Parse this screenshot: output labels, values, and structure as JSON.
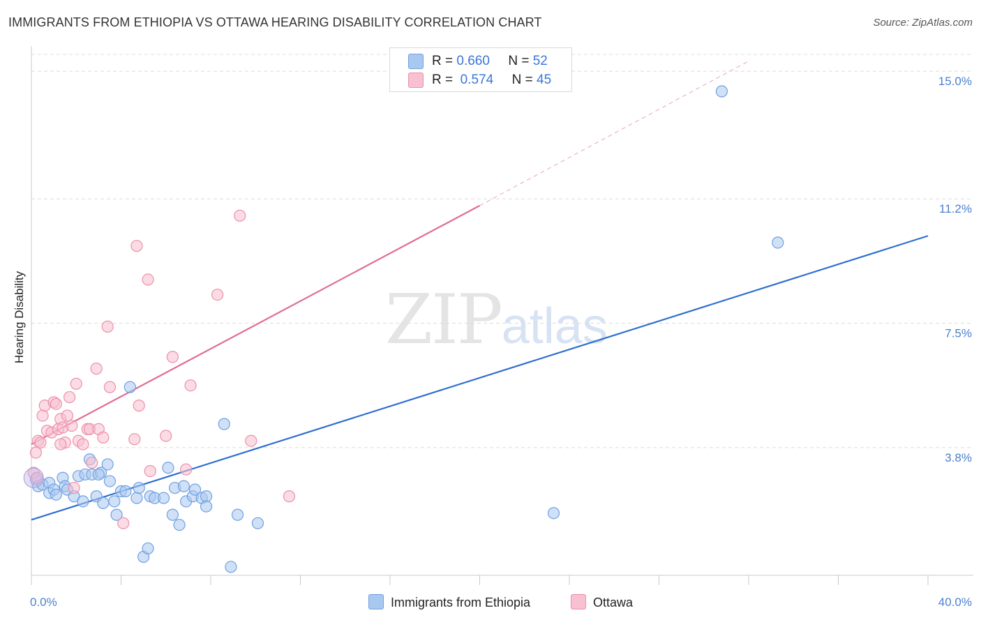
{
  "title": "IMMIGRANTS FROM ETHIOPIA VS OTTAWA HEARING DISABILITY CORRELATION CHART",
  "source": "Source: ZipAtlas.com",
  "watermark": {
    "zip": "ZIP",
    "atlas": "atlas"
  },
  "legend": {
    "rows": [
      {
        "r_label": "R =",
        "r_value": "0.660",
        "n_label": "N =",
        "n_value": "52",
        "color": "#a9c8f0",
        "border": "#6fa0e0"
      },
      {
        "r_label": "R =",
        "r_value": "0.574",
        "n_label": "N =",
        "n_value": "45",
        "color": "#f8c0d0",
        "border": "#ec8fab"
      }
    ]
  },
  "bottom_legend": [
    {
      "label": "Immigrants from Ethiopia",
      "color": "#a9c8f0",
      "border": "#6fa0e0"
    },
    {
      "label": "Ottawa",
      "color": "#f8c0d0",
      "border": "#ec8fab"
    }
  ],
  "chart_data": {
    "type": "scatter",
    "title": "IMMIGRANTS FROM ETHIOPIA VS OTTAWA HEARING DISABILITY CORRELATION CHART",
    "xlabel": "",
    "ylabel": "Hearing Disability",
    "xlim": [
      0,
      40
    ],
    "ylim": [
      0,
      15.5
    ],
    "x_tick_labels": [
      "0.0%",
      "40.0%"
    ],
    "y_ticks": [
      3.8,
      7.5,
      11.2,
      15.0
    ],
    "y_tick_labels": [
      "3.8%",
      "7.5%",
      "11.2%",
      "15.0%"
    ],
    "series": [
      {
        "name": "Immigrants from Ethiopia",
        "color": "#6fa0e0",
        "fill": "#a9c8f0",
        "trend": {
          "x": [
            0,
            40
          ],
          "y": [
            1.65,
            10.1
          ],
          "color": "#2f6fd0"
        },
        "points": [
          [
            0.2,
            2.85
          ],
          [
            0.3,
            2.65
          ],
          [
            0.5,
            2.7
          ],
          [
            0.8,
            2.75
          ],
          [
            0.8,
            2.45
          ],
          [
            1.0,
            2.55
          ],
          [
            1.1,
            2.4
          ],
          [
            1.4,
            2.9
          ],
          [
            1.5,
            2.65
          ],
          [
            1.6,
            2.55
          ],
          [
            1.9,
            2.35
          ],
          [
            2.1,
            2.95
          ],
          [
            2.3,
            2.2
          ],
          [
            2.4,
            3.0
          ],
          [
            2.6,
            3.45
          ],
          [
            2.7,
            3.0
          ],
          [
            2.9,
            2.35
          ],
          [
            3.1,
            3.05
          ],
          [
            3.2,
            2.15
          ],
          [
            3.4,
            3.3
          ],
          [
            3.5,
            2.8
          ],
          [
            3.7,
            2.2
          ],
          [
            3.8,
            1.8
          ],
          [
            4.0,
            2.5
          ],
          [
            4.2,
            2.5
          ],
          [
            4.4,
            5.6
          ],
          [
            4.7,
            2.3
          ],
          [
            4.8,
            2.6
          ],
          [
            5.0,
            0.55
          ],
          [
            5.2,
            0.8
          ],
          [
            5.3,
            2.35
          ],
          [
            5.5,
            2.3
          ],
          [
            5.9,
            2.3
          ],
          [
            6.1,
            3.2
          ],
          [
            6.3,
            1.8
          ],
          [
            6.4,
            2.6
          ],
          [
            6.6,
            1.5
          ],
          [
            6.8,
            2.65
          ],
          [
            6.9,
            2.2
          ],
          [
            7.2,
            2.35
          ],
          [
            7.3,
            2.55
          ],
          [
            7.6,
            2.3
          ],
          [
            7.8,
            2.35
          ],
          [
            7.8,
            2.05
          ],
          [
            8.6,
            4.5
          ],
          [
            8.9,
            0.25
          ],
          [
            9.2,
            1.8
          ],
          [
            10.1,
            1.55
          ],
          [
            23.3,
            1.85
          ],
          [
            30.8,
            14.4
          ],
          [
            33.3,
            9.9
          ],
          [
            3.0,
            3.0
          ]
        ]
      },
      {
        "name": "Ottawa",
        "color": "#ec8fab",
        "fill": "#f8c0d0",
        "trend": {
          "x": [
            0,
            20
          ],
          "y": [
            3.9,
            11.0
          ],
          "color": "#e06c94",
          "dashed_to": [
            32,
            15.3
          ]
        },
        "points": [
          [
            0.2,
            3.65
          ],
          [
            0.3,
            4.0
          ],
          [
            0.4,
            3.95
          ],
          [
            0.5,
            4.75
          ],
          [
            0.6,
            5.05
          ],
          [
            0.7,
            4.3
          ],
          [
            0.9,
            4.25
          ],
          [
            1.0,
            5.15
          ],
          [
            1.1,
            5.1
          ],
          [
            1.2,
            4.35
          ],
          [
            1.3,
            4.65
          ],
          [
            1.4,
            4.4
          ],
          [
            1.5,
            3.95
          ],
          [
            1.6,
            4.75
          ],
          [
            1.7,
            5.3
          ],
          [
            1.8,
            4.45
          ],
          [
            1.9,
            2.6
          ],
          [
            2.0,
            5.7
          ],
          [
            2.1,
            4.0
          ],
          [
            2.3,
            3.9
          ],
          [
            2.5,
            4.35
          ],
          [
            2.6,
            4.35
          ],
          [
            2.7,
            3.35
          ],
          [
            2.9,
            6.15
          ],
          [
            3.0,
            4.35
          ],
          [
            3.2,
            4.1
          ],
          [
            3.4,
            7.4
          ],
          [
            3.5,
            5.6
          ],
          [
            4.1,
            1.55
          ],
          [
            4.6,
            4.05
          ],
          [
            4.7,
            9.8
          ],
          [
            4.8,
            5.05
          ],
          [
            5.2,
            8.8
          ],
          [
            5.3,
            3.1
          ],
          [
            6.0,
            4.15
          ],
          [
            6.3,
            6.5
          ],
          [
            6.9,
            3.15
          ],
          [
            7.1,
            5.65
          ],
          [
            8.3,
            8.35
          ],
          [
            9.3,
            10.7
          ],
          [
            9.8,
            4.0
          ],
          [
            11.5,
            2.35
          ],
          [
            0.1,
            3.05
          ],
          [
            0.25,
            2.9
          ],
          [
            1.3,
            3.9
          ]
        ]
      }
    ]
  }
}
